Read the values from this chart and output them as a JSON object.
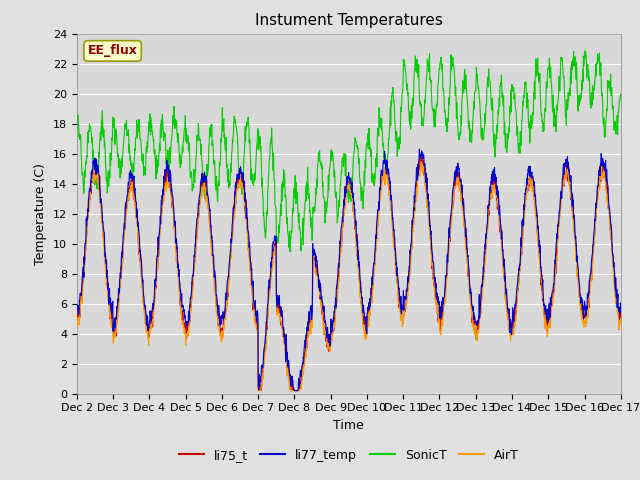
{
  "title": "Instument Temperatures",
  "xlabel": "Time",
  "ylabel": "Temperature (C)",
  "ylim": [
    0,
    24
  ],
  "x_ticks_labels": [
    "Dec 2",
    "Dec 3",
    "Dec 4",
    "Dec 5",
    "Dec 6",
    "Dec 7",
    "Dec 8",
    "Dec 9",
    "Dec 10",
    "Dec 11",
    "Dec 12",
    "Dec 13",
    "Dec 14",
    "Dec 15",
    "Dec 16",
    "Dec 17"
  ],
  "legend_labels": [
    "li75_t",
    "li77_temp",
    "SonicT",
    "AirT"
  ],
  "line_colors": [
    "#cc0000",
    "#0000cc",
    "#00cc00",
    "#ff9900"
  ],
  "annotation_text": "EE_flux",
  "annotation_color": "#8b0000",
  "annotation_bg": "#ffffcc",
  "annotation_border": "#999900",
  "fig_bg_color": "#e0e0e0",
  "plot_bg_color": "#d8d8d8",
  "title_fontsize": 11,
  "axis_fontsize": 9,
  "tick_fontsize": 8,
  "legend_fontsize": 9
}
